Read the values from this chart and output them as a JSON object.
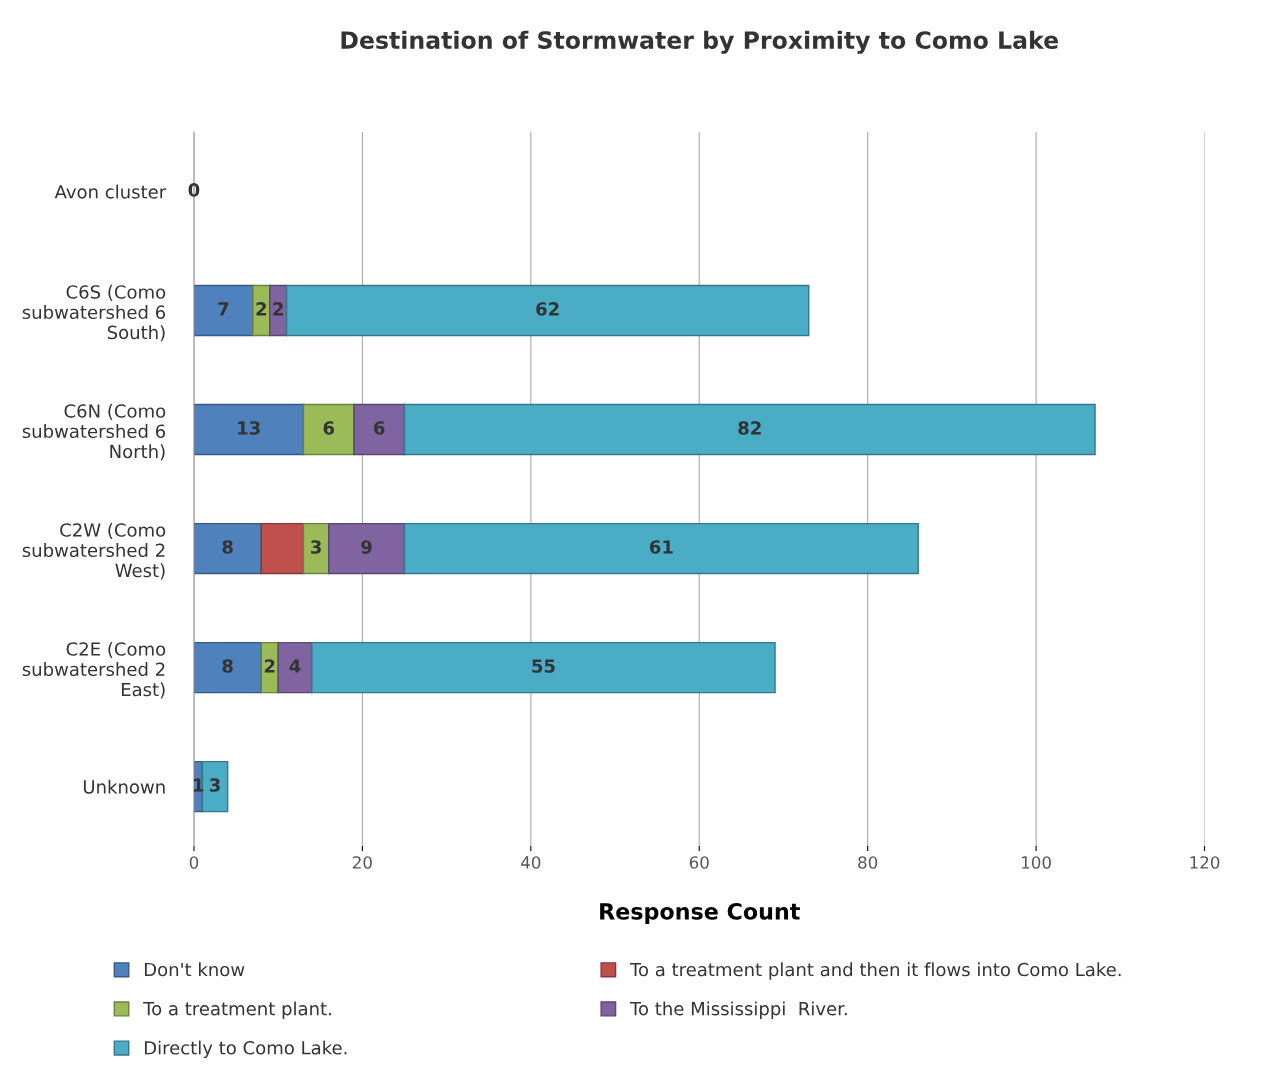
{
  "chart_data": {
    "type": "bar",
    "orientation": "horizontal",
    "stacked": true,
    "title": "Destination of Stormwater by Proximity to Como Lake",
    "xlabel": "Response Count",
    "categories": [
      "Avon cluster",
      "C6S (Como\nsubwatershed 6\nSouth)",
      "C6N (Como\nsubwatershed 6\nNorth)",
      "C2W (Como\nsubwatershed 2\nWest)",
      "C2E (Como\nsubwatershed 2\nEast)",
      "Unknown"
    ],
    "series": [
      {
        "name": "Don't know",
        "color": "#4f81bd",
        "values": [
          0,
          7,
          13,
          8,
          8,
          1
        ],
        "value_labels": [
          "0",
          "7",
          "13",
          "8",
          "8",
          "1"
        ]
      },
      {
        "name": "To a treatment plant and then it flows into Como Lake.",
        "color": "#c0504d",
        "values": [
          0,
          0,
          0,
          5,
          0,
          0
        ],
        "value_labels": [
          null,
          null,
          null,
          null,
          null,
          null
        ]
      },
      {
        "name": "To a treatment plant.",
        "color": "#9bbb59",
        "values": [
          0,
          2,
          6,
          3,
          2,
          0
        ],
        "value_labels": [
          null,
          "2",
          "6",
          "3",
          "2",
          null
        ]
      },
      {
        "name": "To the Mississippi  River.",
        "color": "#8064a2",
        "values": [
          0,
          2,
          6,
          9,
          4,
          0
        ],
        "value_labels": [
          null,
          "2",
          "6",
          "9",
          "4",
          null
        ]
      },
      {
        "name": "Directly to Como Lake.",
        "color": "#4bacc6",
        "values": [
          0,
          62,
          82,
          61,
          55,
          3
        ],
        "value_labels": [
          null,
          "62",
          "82",
          "61",
          "55",
          "3"
        ]
      }
    ],
    "xlim": [
      0,
      120
    ],
    "xticks": [
      0,
      20,
      40,
      60,
      80,
      100,
      120
    ],
    "grid": "x",
    "legend": "bottom"
  }
}
